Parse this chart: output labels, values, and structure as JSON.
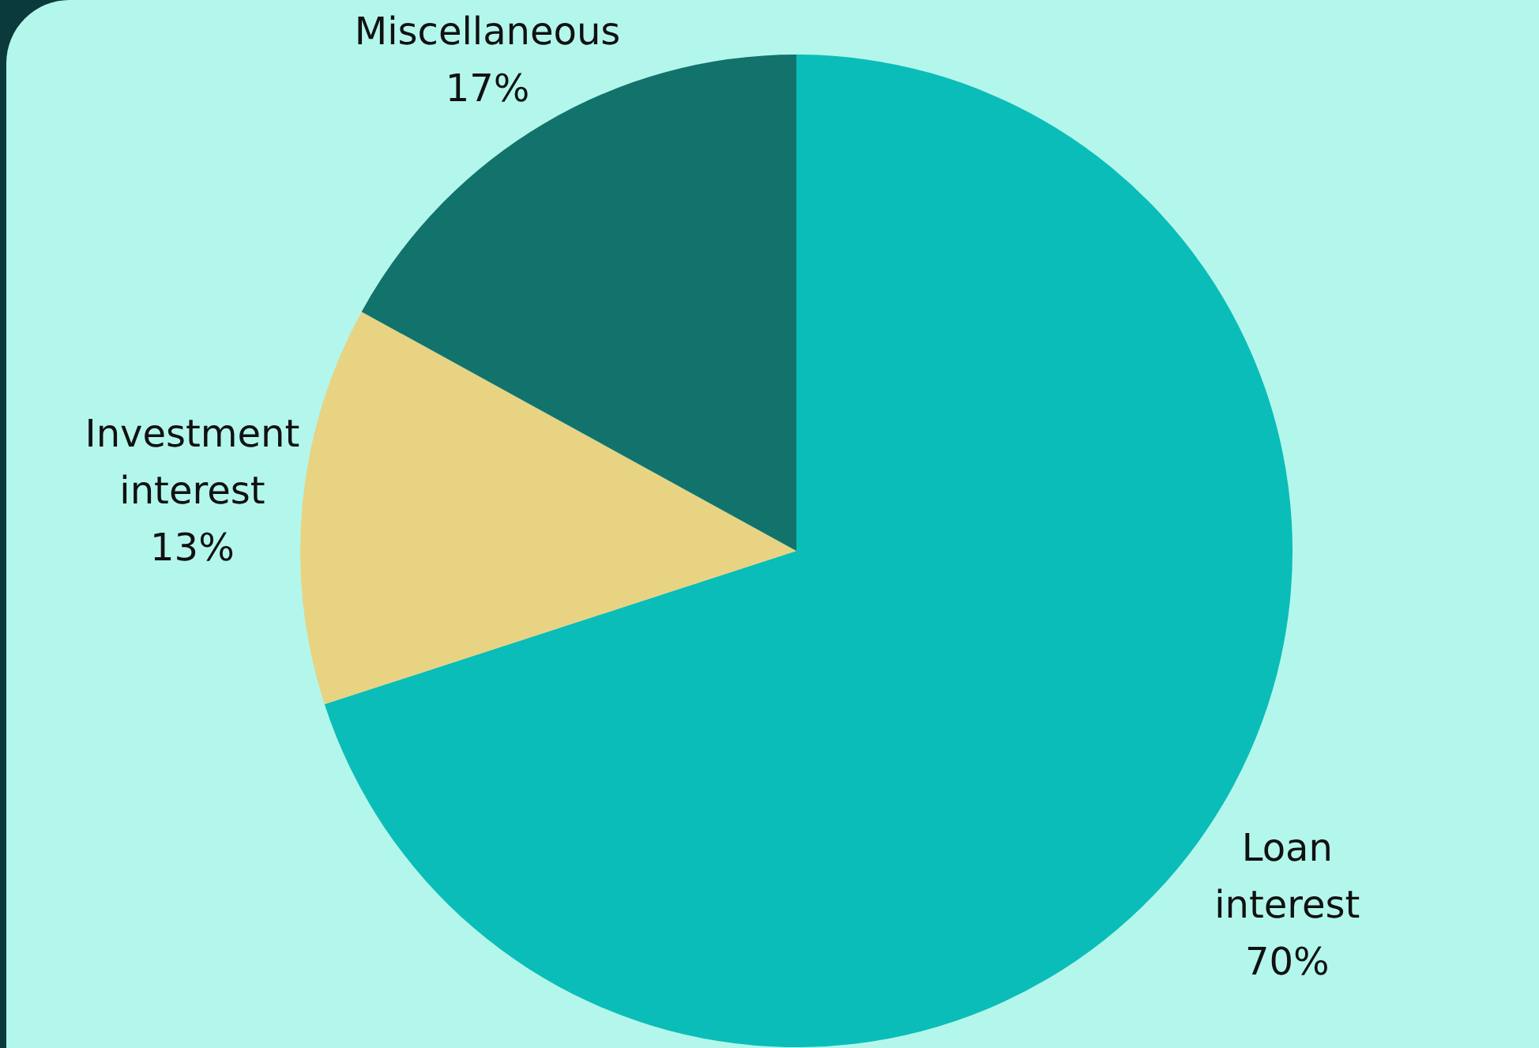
{
  "chart_data": {
    "type": "pie",
    "categories": [
      "Loan interest",
      "Investment interest",
      "Miscellaneous"
    ],
    "values": [
      70,
      13,
      17
    ],
    "colors": [
      "#0bbdb8",
      "#e8d383",
      "#12736c"
    ],
    "value_labels": [
      "70%",
      "13%",
      "17%"
    ],
    "legend": false
  }
}
